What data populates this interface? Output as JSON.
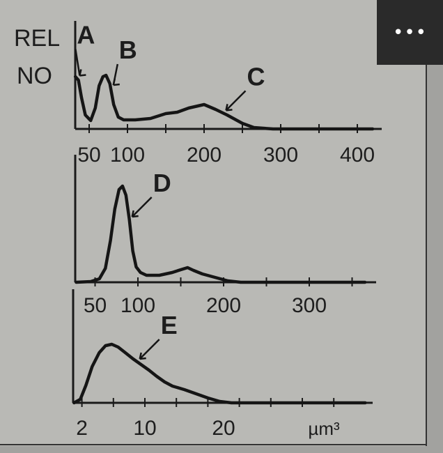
{
  "ylabel_lines": [
    "REL",
    "NO"
  ],
  "more_button": {
    "icon": "more-horizontal-icon",
    "label": "•••"
  },
  "chart_data": [
    {
      "type": "line",
      "xlim": [
        30,
        420
      ],
      "xticks_labeled": [
        50,
        100,
        200,
        300,
        400
      ],
      "xtick_labels": [
        "50",
        "100",
        "200",
        "300",
        "400"
      ],
      "minor_ticks": [
        50,
        100,
        150,
        200,
        250,
        300,
        350,
        400
      ],
      "ylabel": "REL NO",
      "x": [
        32,
        36,
        40,
        45,
        52,
        58,
        63,
        68,
        72,
        77,
        82,
        88,
        95,
        110,
        130,
        150,
        165,
        180,
        200,
        215,
        230,
        250,
        265,
        290,
        420
      ],
      "y": [
        75,
        70,
        45,
        20,
        12,
        30,
        62,
        75,
        77,
        65,
        35,
        17,
        13,
        13,
        15,
        22,
        24,
        30,
        35,
        28,
        20,
        8,
        2,
        0,
        0
      ],
      "annotations": [
        {
          "text": "A",
          "x": 34
        },
        {
          "text": "B",
          "x": 78
        },
        {
          "text": "C",
          "x": 225
        }
      ]
    },
    {
      "type": "line",
      "xlim": [
        27,
        365
      ],
      "xticks_labeled": [
        50,
        100,
        200,
        300
      ],
      "xtick_labels": [
        "50",
        "100",
        "200",
        "300"
      ],
      "minor_ticks": [
        50,
        100,
        150,
        200,
        250,
        300,
        350
      ],
      "x": [
        28,
        45,
        55,
        62,
        68,
        73,
        78,
        82,
        86,
        90,
        94,
        98,
        103,
        110,
        125,
        140,
        150,
        158,
        165,
        175,
        190,
        205,
        220,
        365
      ],
      "y": [
        0,
        1,
        5,
        20,
        60,
        105,
        133,
        138,
        125,
        90,
        45,
        22,
        14,
        10,
        10,
        14,
        18,
        21,
        17,
        12,
        7,
        2,
        0,
        0
      ],
      "annotations": [
        {
          "text": "D",
          "x": 90
        }
      ]
    },
    {
      "type": "line",
      "xlim": [
        1,
        38
      ],
      "xticks_labeled": [
        2,
        10,
        20
      ],
      "xtick_labels": [
        "2",
        "10",
        "20"
      ],
      "minor_ticks": [
        2,
        6,
        10,
        14,
        18,
        22,
        26,
        30,
        34
      ],
      "xlabel": "µm³",
      "x": [
        1,
        1.8,
        2.5,
        3.3,
        4.2,
        5,
        5.8,
        6.6,
        7.5,
        8.5,
        9.5,
        10.5,
        11.5,
        12.5,
        13.5,
        15,
        16.5,
        18,
        19.5,
        21,
        38
      ],
      "y": [
        0,
        5,
        25,
        52,
        72,
        82,
        84,
        80,
        72,
        63,
        55,
        47,
        38,
        30,
        24,
        19,
        13,
        7,
        2,
        0,
        0
      ],
      "annotations": [
        {
          "text": "E",
          "x": 9
        }
      ]
    }
  ]
}
